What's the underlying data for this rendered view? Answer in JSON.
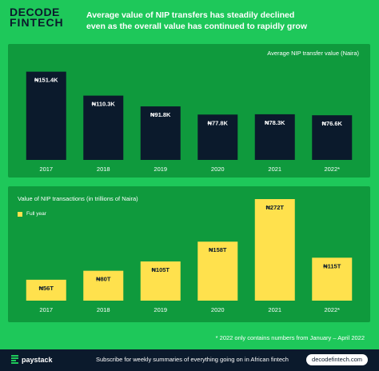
{
  "brand": {
    "line1": "DECODE",
    "line2": "FINTECH"
  },
  "headline": "Average value of NIP transfers has steadily declined even as the overall value has continued to rapidly grow",
  "colors": {
    "background": "#1ec85a",
    "panel": "#0f9a3d",
    "dark_bar": "#0b1a2c",
    "yellow_bar": "#ffe14d"
  },
  "chart_data": [
    {
      "type": "bar",
      "title": "Average NIP transfer value (Naira)",
      "categories": [
        "2017",
        "2018",
        "2019",
        "2020",
        "2021",
        "2022*"
      ],
      "values": [
        151.4,
        110.3,
        91.8,
        77.8,
        78.3,
        76.6
      ],
      "unit": "thousand Naira",
      "data_labels": [
        "₦151.4K",
        "₦110.3K",
        "₦91.8K",
        "₦77.8K",
        "₦78.3K",
        "₦76.6K"
      ],
      "ylim": [
        0,
        155
      ],
      "bar_color": "#0b1a2c",
      "grid": false
    },
    {
      "type": "bar",
      "title": "Value of NIP transactions (in trillions of Naira)",
      "legend": [
        "Full year"
      ],
      "legend_placement": "top-left",
      "categories": [
        "2017",
        "2018",
        "2019",
        "2020",
        "2021",
        "2022*"
      ],
      "values": [
        56,
        80,
        105,
        158,
        272,
        115
      ],
      "unit": "trillion Naira",
      "data_labels": [
        "₦56T",
        "₦80T",
        "₦105T",
        "₦158T",
        "₦272T",
        "₦115T"
      ],
      "ylim": [
        0,
        272
      ],
      "bar_color": "#ffe14d",
      "grid": false
    }
  ],
  "footnote": "* 2022 only contains numbers from January – April 2022",
  "footer": {
    "sponsor": "paystack",
    "subscribe_text": "Subscribe for weekly summaries of everything going on in African fintech",
    "site": "decodefintech.com"
  }
}
